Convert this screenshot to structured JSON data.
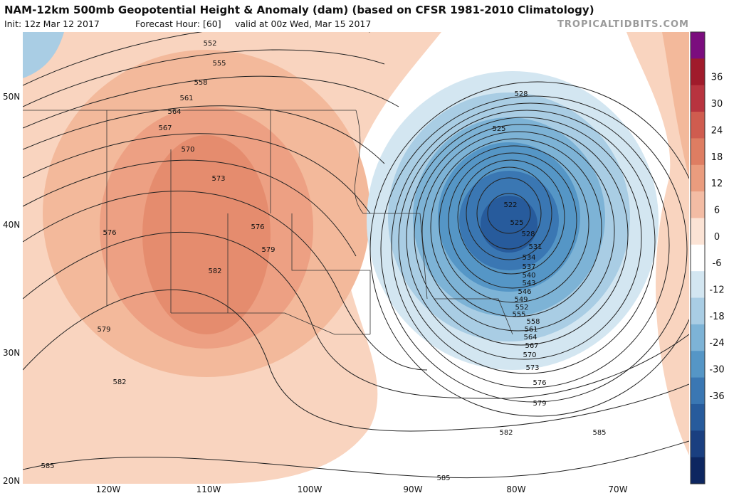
{
  "header": {
    "title": "NAM-12km 500mb Geopotential Height & Anomaly (dam) (based on CFSR 1981-2010 Climatology)",
    "init": "Init: 12z Mar 12 2017",
    "forecast_hour": "Forecast Hour: [60]",
    "valid": "valid at 00z Wed, Mar 15 2017",
    "credit": "TROPICALTIDBITS.COM"
  },
  "map": {
    "lat_labels": [
      "50N",
      "40N",
      "30N",
      "20N"
    ],
    "lon_labels": [
      "120W",
      "110W",
      "100W",
      "90W",
      "80W",
      "70W"
    ],
    "contour_labels": [
      552,
      555,
      558,
      561,
      564,
      567,
      570,
      573,
      576,
      576,
      579,
      582,
      579,
      582,
      585,
      528,
      525,
      522,
      525,
      528,
      531,
      534,
      537,
      540,
      543,
      546,
      549,
      552,
      555,
      558,
      561,
      564,
      567,
      570,
      573,
      576,
      579,
      582,
      585,
      585
    ]
  },
  "colorbar": {
    "ticks": [
      36,
      30,
      24,
      18,
      12,
      6,
      0,
      -6,
      -12,
      -18,
      -24,
      -30,
      -36
    ]
  }
}
